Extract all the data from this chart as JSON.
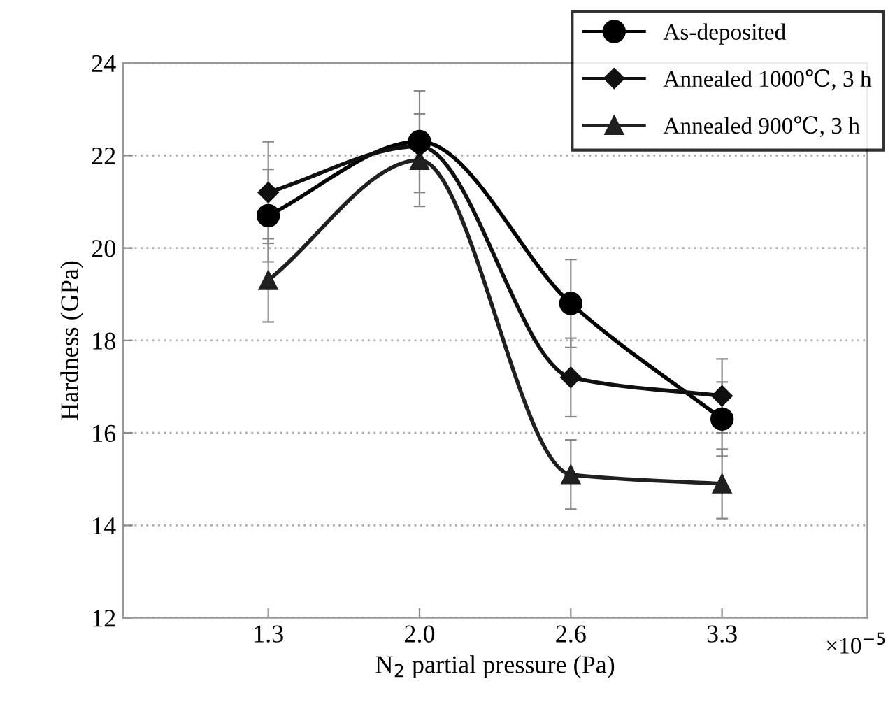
{
  "chart_data": {
    "type": "line",
    "xlabel": "N$_{2}$ partial pressure (Pa)",
    "ylabel": "Hardness (GPa)",
    "categories": [
      "1.3",
      "2.0",
      "2.6",
      "3.3"
    ],
    "series": [
      {
        "name": "As-deposited",
        "color": "#000000",
        "marker": "circle",
        "values": [
          20.7,
          22.3,
          18.8,
          16.3
        ],
        "errors": [
          1.0,
          1.1,
          0.95,
          0.8
        ]
      },
      {
        "name": "Annealed 1000℃, 3 h",
        "color": "#101010",
        "marker": "diamond",
        "values": [
          21.2,
          22.2,
          17.2,
          16.8
        ],
        "errors": [
          1.1,
          null,
          0.85,
          0.8
        ]
      },
      {
        "name": "Annealed 900℃, 3 h",
        "color": "#202020",
        "marker": "triangle",
        "values": [
          19.3,
          21.9,
          15.1,
          14.9
        ],
        "errors": [
          0.9,
          1.0,
          0.75,
          0.75
        ]
      }
    ],
    "ylim": [
      12,
      24
    ],
    "yticks": [
      12,
      14,
      16,
      18,
      20,
      22,
      24
    ],
    "grid": "y",
    "legend": "top right",
    "line_style": "solid",
    "annotations": [
      "×10$^{−5}$"
    ]
  }
}
